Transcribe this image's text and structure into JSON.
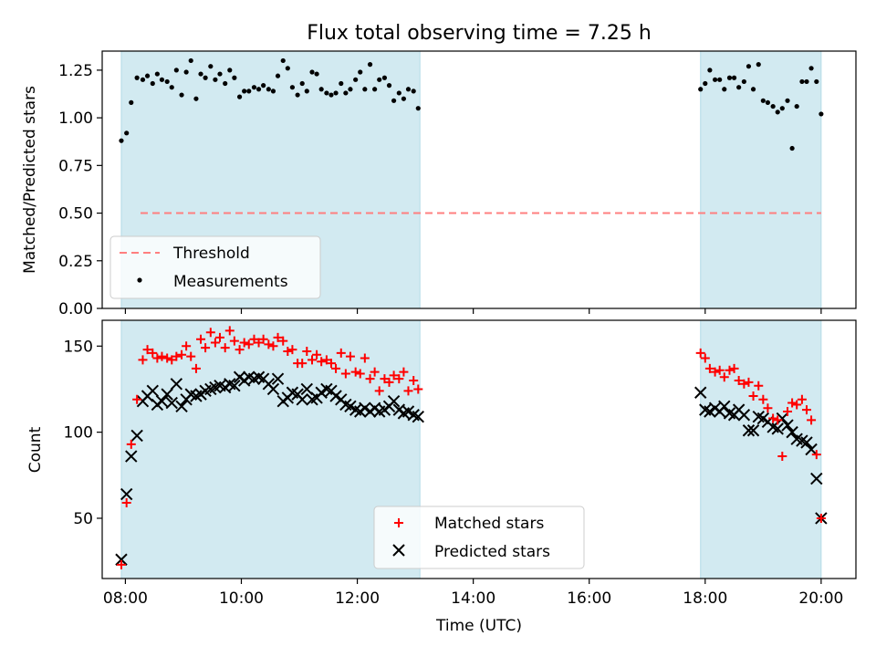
{
  "chart_data": [
    {
      "type": "scatter",
      "title": "Flux total observing time = 7.25 h",
      "ylabel": "Matched/Predicted stars",
      "xlabel": "",
      "xlim": [
        7.6,
        20.6
      ],
      "ylim": [
        0,
        1.35
      ],
      "yticks": [
        "0.00",
        "0.25",
        "0.50",
        "0.75",
        "1.00",
        "1.25"
      ],
      "grid": false,
      "legend_position": "lower-left",
      "shaded_intervals": [
        [
          7.93,
          13.08
        ],
        [
          17.92,
          20.0
        ]
      ],
      "shade_color": "#add8e6",
      "threshold": {
        "name": "Threshold",
        "value": 0.5,
        "color": "#ff7f7f",
        "style": "dashed"
      },
      "series": [
        {
          "name": "Measurements",
          "marker": "dot",
          "color": "#000000",
          "x": [
            7.93,
            8.02,
            8.1,
            8.2,
            8.3,
            8.38,
            8.47,
            8.55,
            8.63,
            8.72,
            8.8,
            8.88,
            8.97,
            9.05,
            9.13,
            9.22,
            9.3,
            9.38,
            9.47,
            9.55,
            9.63,
            9.72,
            9.8,
            9.88,
            9.97,
            10.05,
            10.13,
            10.22,
            10.3,
            10.38,
            10.47,
            10.55,
            10.63,
            10.72,
            10.8,
            10.88,
            10.97,
            11.05,
            11.13,
            11.22,
            11.3,
            11.38,
            11.47,
            11.55,
            11.63,
            11.72,
            11.8,
            11.88,
            11.97,
            12.05,
            12.13,
            12.22,
            12.3,
            12.38,
            12.47,
            12.55,
            12.63,
            12.72,
            12.8,
            12.88,
            12.97,
            13.05,
            17.92,
            18.0,
            18.08,
            18.17,
            18.25,
            18.33,
            18.42,
            18.5,
            18.58,
            18.67,
            18.75,
            18.83,
            18.92,
            19.0,
            19.08,
            19.17,
            19.25,
            19.33,
            19.42,
            19.5,
            19.58,
            19.67,
            19.75,
            19.83,
            19.92,
            20.0
          ],
          "y": [
            0.88,
            0.92,
            1.08,
            1.21,
            1.2,
            1.22,
            1.18,
            1.23,
            1.2,
            1.19,
            1.16,
            1.25,
            1.12,
            1.24,
            1.3,
            1.1,
            1.23,
            1.21,
            1.27,
            1.2,
            1.23,
            1.18,
            1.25,
            1.21,
            1.11,
            1.14,
            1.14,
            1.16,
            1.15,
            1.17,
            1.15,
            1.14,
            1.22,
            1.3,
            1.26,
            1.16,
            1.12,
            1.18,
            1.14,
            1.24,
            1.23,
            1.15,
            1.13,
            1.12,
            1.13,
            1.18,
            1.13,
            1.15,
            1.2,
            1.24,
            1.15,
            1.28,
            1.15,
            1.2,
            1.21,
            1.17,
            1.09,
            1.13,
            1.1,
            1.15,
            1.14,
            1.05,
            1.15,
            1.18,
            1.25,
            1.2,
            1.2,
            1.15,
            1.21,
            1.21,
            1.16,
            1.19,
            1.27,
            1.15,
            1.28,
            1.09,
            1.08,
            1.06,
            1.03,
            1.05,
            1.09,
            0.84,
            1.06,
            1.19,
            1.19,
            1.26,
            1.19,
            1.02
          ]
        }
      ]
    },
    {
      "type": "scatter",
      "title": "",
      "xlabel": "Time (UTC)",
      "ylabel": "Count",
      "xlim": [
        7.6,
        20.6
      ],
      "ylim": [
        15,
        165
      ],
      "yticks": [
        "50",
        "100",
        "150"
      ],
      "xticks": [
        "08:00",
        "10:00",
        "12:00",
        "14:00",
        "16:00",
        "18:00",
        "20:00"
      ],
      "grid": false,
      "legend_position": "lower-center",
      "shaded_intervals": [
        [
          7.93,
          13.08
        ],
        [
          17.92,
          20.0
        ]
      ],
      "shade_color": "#add8e6",
      "series": [
        {
          "name": "Matched stars",
          "marker": "plus",
          "color": "#ff0000",
          "x": [
            7.93,
            8.02,
            8.1,
            8.2,
            8.3,
            8.38,
            8.47,
            8.55,
            8.63,
            8.72,
            8.8,
            8.88,
            8.97,
            9.05,
            9.13,
            9.22,
            9.3,
            9.38,
            9.47,
            9.55,
            9.63,
            9.72,
            9.8,
            9.88,
            9.97,
            10.05,
            10.13,
            10.22,
            10.3,
            10.38,
            10.47,
            10.55,
            10.63,
            10.72,
            10.8,
            10.88,
            10.97,
            11.05,
            11.13,
            11.22,
            11.3,
            11.38,
            11.47,
            11.55,
            11.63,
            11.72,
            11.8,
            11.88,
            11.97,
            12.05,
            12.13,
            12.22,
            12.3,
            12.38,
            12.47,
            12.55,
            12.63,
            12.72,
            12.8,
            12.88,
            12.97,
            13.05,
            17.92,
            18.0,
            18.08,
            18.17,
            18.25,
            18.33,
            18.42,
            18.5,
            18.58,
            18.67,
            18.75,
            18.83,
            18.92,
            19.0,
            19.08,
            19.17,
            19.25,
            19.33,
            19.42,
            19.5,
            19.58,
            19.67,
            19.75,
            19.83,
            19.92,
            20.0
          ],
          "y": [
            23,
            59,
            93,
            119,
            142,
            148,
            146,
            143,
            144,
            143,
            142,
            144,
            145,
            150,
            144,
            137,
            154,
            149,
            158,
            152,
            155,
            149,
            159,
            153,
            148,
            152,
            151,
            154,
            152,
            154,
            151,
            150,
            155,
            153,
            147,
            148,
            140,
            140,
            147,
            142,
            145,
            141,
            142,
            140,
            137,
            146,
            134,
            144,
            135,
            134,
            143,
            131,
            135,
            124,
            131,
            129,
            133,
            131,
            135,
            124,
            130,
            125,
            146,
            143,
            137,
            135,
            136,
            132,
            136,
            137,
            130,
            128,
            129,
            121,
            127,
            119,
            114,
            108,
            107,
            86,
            112,
            117,
            116,
            119,
            113,
            107,
            87,
            50
          ]
        },
        {
          "name": "Predicted stars",
          "marker": "x",
          "color": "#000000",
          "x": [
            7.93,
            8.02,
            8.1,
            8.2,
            8.3,
            8.38,
            8.47,
            8.55,
            8.63,
            8.72,
            8.8,
            8.88,
            8.97,
            9.05,
            9.13,
            9.22,
            9.3,
            9.38,
            9.47,
            9.55,
            9.63,
            9.72,
            9.8,
            9.88,
            9.97,
            10.05,
            10.13,
            10.22,
            10.3,
            10.38,
            10.47,
            10.55,
            10.63,
            10.72,
            10.8,
            10.88,
            10.97,
            11.05,
            11.13,
            11.22,
            11.3,
            11.38,
            11.47,
            11.55,
            11.63,
            11.72,
            11.8,
            11.88,
            11.97,
            12.05,
            12.13,
            12.22,
            12.3,
            12.38,
            12.47,
            12.55,
            12.63,
            12.72,
            12.8,
            12.88,
            12.97,
            13.05,
            17.92,
            18.0,
            18.08,
            18.17,
            18.25,
            18.33,
            18.42,
            18.5,
            18.58,
            18.67,
            18.75,
            18.83,
            18.92,
            19.0,
            19.08,
            19.17,
            19.25,
            19.33,
            19.42,
            19.5,
            19.58,
            19.67,
            19.75,
            19.83,
            19.92,
            20.0
          ],
          "y": [
            26,
            64,
            86,
            98,
            118,
            121,
            124,
            116,
            118,
            122,
            117,
            128,
            115,
            119,
            122,
            121,
            122,
            124,
            125,
            126,
            127,
            126,
            128,
            127,
            132,
            130,
            132,
            131,
            132,
            131,
            128,
            125,
            131,
            118,
            120,
            123,
            122,
            119,
            125,
            119,
            120,
            123,
            125,
            124,
            121,
            119,
            116,
            115,
            113,
            112,
            114,
            112,
            114,
            112,
            113,
            115,
            118,
            113,
            111,
            112,
            110,
            109,
            123,
            113,
            112,
            114,
            112,
            115,
            111,
            110,
            113,
            110,
            101,
            101,
            109,
            108,
            106,
            103,
            102,
            108,
            104,
            100,
            96,
            95,
            94,
            90,
            73,
            50
          ]
        }
      ]
    }
  ]
}
